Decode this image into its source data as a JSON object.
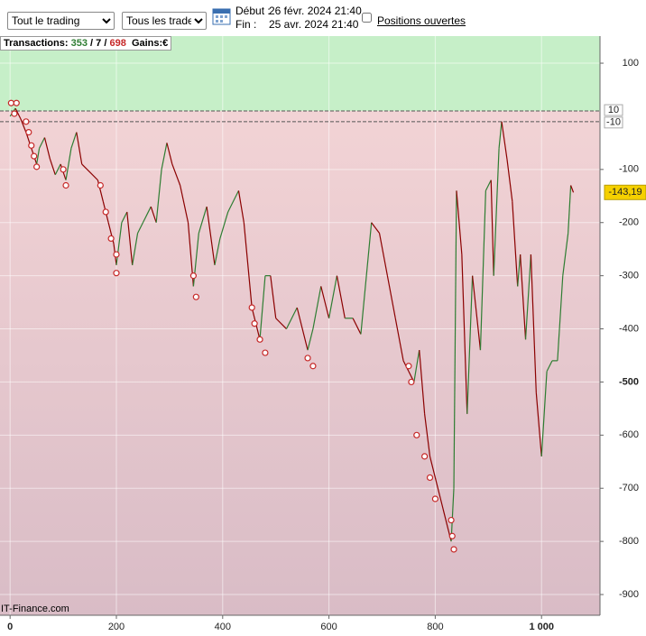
{
  "controls": {
    "period_select": "Tout le trading",
    "trades_select": "Tous les trades",
    "start_label": "Début :",
    "start": "26 févr. 2024 21:40",
    "end_label": "Fin :",
    "end": "25 avr. 2024 21:40",
    "open_positions": "Positions ouvertes"
  },
  "summary": {
    "label": "Transactions:",
    "total": 353,
    "separator": "/",
    "neutral": 7,
    "losing": 698,
    "gains_label": "Gains:",
    "currency": "€"
  },
  "chart_data": {
    "type": "line",
    "x": [
      0,
      10,
      20,
      30,
      40,
      50,
      55,
      65,
      75,
      85,
      95,
      105,
      115,
      125,
      135,
      145,
      165,
      175,
      185,
      195,
      200,
      210,
      220,
      230,
      240,
      250,
      265,
      275,
      285,
      295,
      305,
      320,
      335,
      345,
      355,
      370,
      385,
      395,
      410,
      430,
      440,
      455,
      470,
      480,
      490,
      500,
      520,
      540,
      560,
      570,
      585,
      600,
      615,
      630,
      645,
      660,
      680,
      695,
      710,
      725,
      740,
      750,
      760,
      770,
      780,
      790,
      800,
      810,
      820,
      830,
      835,
      840,
      850,
      860,
      870,
      885,
      895,
      905,
      910,
      920,
      925,
      935,
      945,
      955,
      960,
      970,
      980,
      990,
      1000,
      1010,
      1020,
      1030,
      1040,
      1050,
      1055,
      1060
    ],
    "values": [
      0,
      15,
      -5,
      -30,
      -60,
      -90,
      -60,
      -40,
      -80,
      -110,
      -90,
      -120,
      -60,
      -30,
      -90,
      -100,
      -120,
      -160,
      -200,
      -240,
      -280,
      -200,
      -180,
      -280,
      -220,
      -200,
      -170,
      -200,
      -100,
      -50,
      -90,
      -130,
      -200,
      -320,
      -220,
      -170,
      -280,
      -230,
      -180,
      -140,
      -200,
      -360,
      -420,
      -300,
      -300,
      -380,
      -400,
      -360,
      -440,
      -400,
      -320,
      -380,
      -300,
      -380,
      -380,
      -410,
      -200,
      -220,
      -300,
      -380,
      -460,
      -480,
      -500,
      -440,
      -560,
      -640,
      -680,
      -720,
      -760,
      -800,
      -700,
      -140,
      -260,
      -560,
      -300,
      -440,
      -140,
      -120,
      -300,
      -60,
      -10,
      -80,
      -160,
      -320,
      -260,
      -420,
      -260,
      -520,
      -640,
      -480,
      -460,
      -460,
      -300,
      -220,
      -130,
      -143.19
    ],
    "up_color": "#2e7d32",
    "down_color": "#8b0000",
    "markers": {
      "x": [
        2,
        12,
        8,
        30,
        35,
        40,
        45,
        50,
        100,
        105,
        170,
        180,
        190,
        200,
        200,
        345,
        350,
        455,
        460,
        470,
        480,
        560,
        570,
        750,
        755,
        765,
        780,
        790,
        800,
        830,
        832,
        835
      ],
      "values": [
        25,
        25,
        5,
        -10,
        -30,
        -55,
        -75,
        -95,
        -100,
        -130,
        -130,
        -180,
        -230,
        -260,
        -295,
        -300,
        -340,
        -360,
        -390,
        -420,
        -445,
        -455,
        -470,
        -470,
        -500,
        -600,
        -640,
        -680,
        -720,
        -760,
        -790,
        -815
      ],
      "color": "#c62828"
    },
    "thresholds": [
      10,
      -10
    ],
    "last_value_label": {
      "value": -143.19,
      "label": "-143,19"
    },
    "xlim": [
      -19,
      1110
    ],
    "ylim": [
      -939,
      151
    ],
    "xticks": [
      0,
      200,
      400,
      600,
      800,
      {
        "value": 1000,
        "label": "1 000"
      }
    ],
    "yticks": [
      100,
      -100,
      -200,
      -300,
      -400,
      -500,
      -600,
      -700,
      -800,
      -900
    ],
    "grid": true,
    "watermark": "IT-Finance.com"
  }
}
